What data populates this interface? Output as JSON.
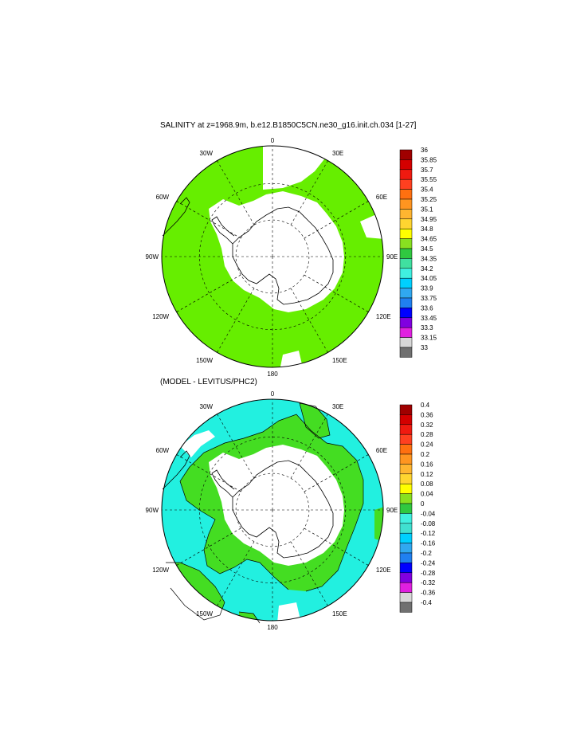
{
  "panels": [
    {
      "title": "SALINITY at z=1968.9m, b.e12.B1850C5CN.ne30_g16.init.ch.034 [1-27]",
      "longitude_labels": [
        "0",
        "30E",
        "60E",
        "90E",
        "120E",
        "150E",
        "180",
        "150W",
        "120W",
        "90W",
        "60W",
        "30W"
      ],
      "colorbar": {
        "labels": [
          "36",
          "35.85",
          "35.7",
          "35.55",
          "35.4",
          "35.25",
          "35.1",
          "34.95",
          "34.8",
          "34.65",
          "34.5",
          "34.35",
          "34.2",
          "34.05",
          "33.9",
          "33.75",
          "33.6",
          "33.45",
          "33.3",
          "33.15",
          "33"
        ],
        "colors": [
          "#a00000",
          "#d40000",
          "#f01a10",
          "#ff4020",
          "#ff7010",
          "#ff9520",
          "#ffb530",
          "#ffd530",
          "#ffff00",
          "#88e020",
          "#30c840",
          "#40e0a0",
          "#40f0e0",
          "#00d0ff",
          "#30a8f0",
          "#2080f0",
          "#0000ff",
          "#8000e0",
          "#e020e0",
          "#d8d8d8",
          "#707070"
        ]
      },
      "field": {
        "ocean_color": "#66ee00",
        "land_color": "#ffffff"
      }
    },
    {
      "title": "(MODEL - LEVITUS/PHC2)",
      "longitude_labels": [
        "0",
        "30E",
        "60E",
        "90E",
        "120E",
        "150E",
        "180",
        "150W",
        "120W",
        "90W",
        "60W",
        "30W"
      ],
      "colorbar": {
        "labels": [
          "0.4",
          "0.36",
          "0.32",
          "0.28",
          "0.24",
          "0.2",
          "0.16",
          "0.12",
          "0.08",
          "0.04",
          "0",
          "-0.04",
          "-0.08",
          "-0.12",
          "-0.16",
          "-0.2",
          "-0.24",
          "-0.28",
          "-0.32",
          "-0.36",
          "-0.4"
        ],
        "colors": [
          "#a00000",
          "#d40000",
          "#f01a10",
          "#ff4020",
          "#ff7010",
          "#ff9520",
          "#ffb530",
          "#ffd530",
          "#ffff00",
          "#88e020",
          "#30c840",
          "#40f0e0",
          "#40e0d0",
          "#00d0ff",
          "#30a8f0",
          "#2080f0",
          "#0000ff",
          "#8000e0",
          "#e020e0",
          "#d8d8d8",
          "#707070"
        ]
      },
      "field": {
        "positive_color": "#44dd22",
        "negative_color": "#22f0e0",
        "land_color": "#ffffff"
      }
    }
  ]
}
